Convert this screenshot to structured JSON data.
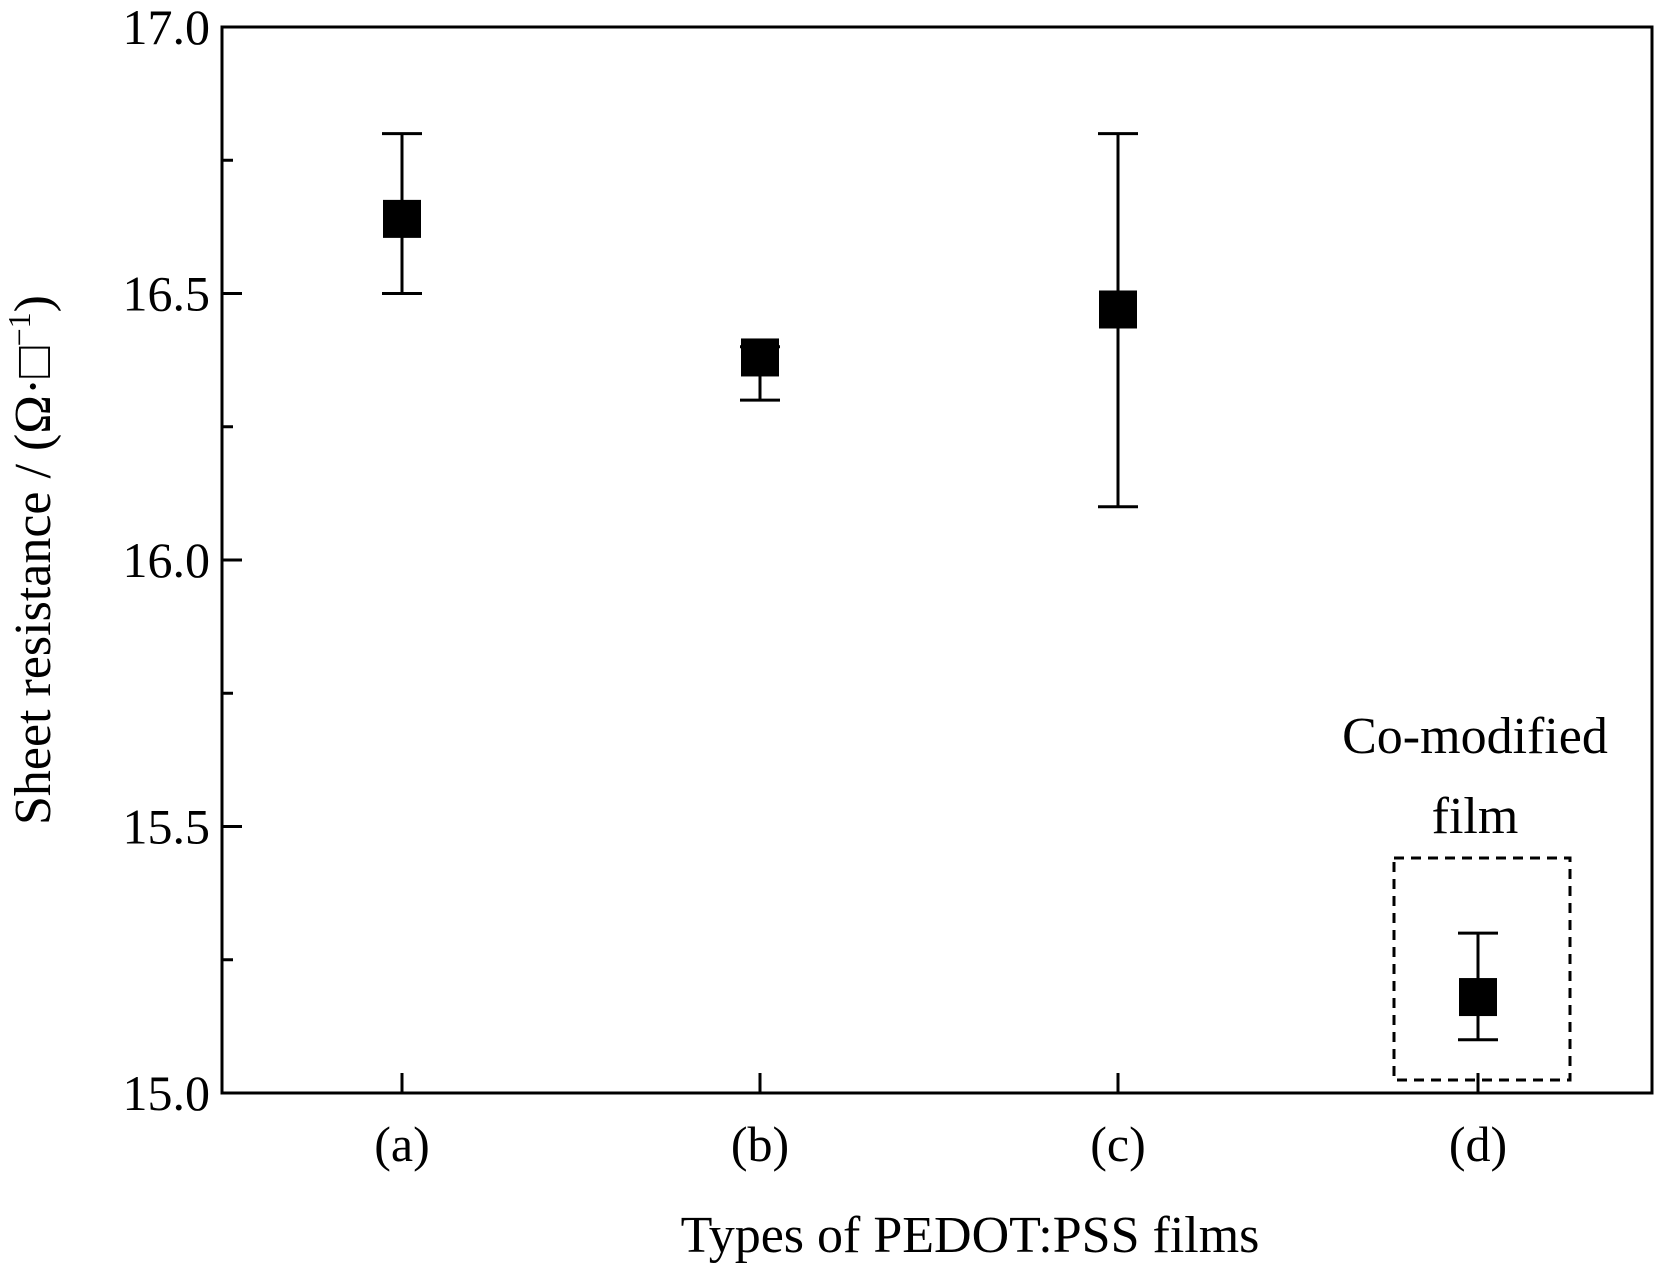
{
  "chart_data": {
    "type": "scatter",
    "categories": [
      "(a)",
      "(b)",
      "(c)",
      "(d)"
    ],
    "values": [
      16.64,
      16.38,
      16.47,
      15.18
    ],
    "error_low": [
      16.5,
      16.3,
      16.1,
      15.1
    ],
    "error_high": [
      16.8,
      16.4,
      16.8,
      15.3
    ],
    "xlabel": "Types of PEDOT:PSS films",
    "ylabel_main": "Sheet resistance / (Ω·□",
    "ylabel_sup": "−1",
    "ylabel_close": ")",
    "ylim": [
      15.0,
      17.0
    ],
    "yticks": [
      "15.0",
      "15.5",
      "16.0",
      "16.5",
      "17.0"
    ],
    "ytick_values": [
      15.0,
      15.5,
      16.0,
      16.5,
      17.0
    ],
    "yminor_values": [
      15.25,
      15.75,
      16.25,
      16.75
    ],
    "grid": false,
    "marker_color": "#000000",
    "annotation": {
      "lines": [
        "Co-modified",
        "film"
      ],
      "target_category": "(d)",
      "box_style": "dashed"
    }
  }
}
